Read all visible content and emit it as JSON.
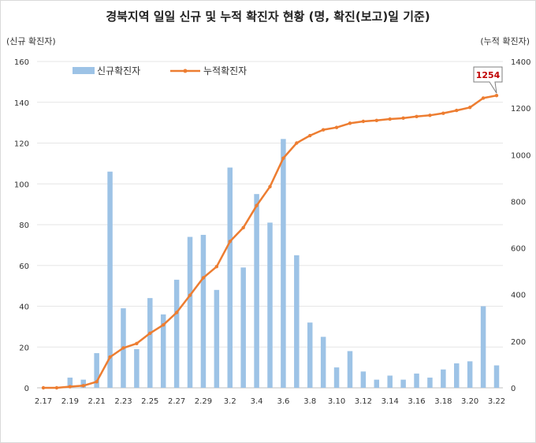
{
  "chart_data": {
    "type": "bar+line",
    "title": "경북지역 일일 신규 및 누적 확진자 현황 (명, 확진(보고)일 기준)",
    "ylabel_left": "(신규 확진자)",
    "ylabel_right": "(누적 확진자)",
    "ylim_left": [
      0,
      160
    ],
    "ylim_right": [
      0,
      1400
    ],
    "yticks_left": [
      0,
      20,
      40,
      60,
      80,
      100,
      120,
      140,
      160
    ],
    "yticks_right": [
      0,
      200,
      400,
      600,
      800,
      1000,
      1200,
      1400
    ],
    "x_tick_labels": [
      "2.17",
      "2.19",
      "2.21",
      "2.23",
      "2.25",
      "2.27",
      "2.29",
      "3.2",
      "3.4",
      "3.6",
      "3.8",
      "3.10",
      "3.12",
      "3.14",
      "3.16",
      "3.18",
      "3.20",
      "3.22"
    ],
    "categories": [
      "2.17",
      "2.18",
      "2.19",
      "2.20",
      "2.21",
      "2.22",
      "2.23",
      "2.24",
      "2.25",
      "2.26",
      "2.27",
      "2.28",
      "2.29",
      "3.1",
      "3.2",
      "3.3",
      "3.4",
      "3.5",
      "3.6",
      "3.7",
      "3.8",
      "3.9",
      "3.10",
      "3.11",
      "3.12",
      "3.13",
      "3.14",
      "3.15",
      "3.16",
      "3.17",
      "3.18",
      "3.19",
      "3.20",
      "3.21",
      "3.22"
    ],
    "series": [
      {
        "name": "신규확진자",
        "type": "bar",
        "axis": "left",
        "color": "#9dc3e6",
        "values": [
          0,
          0,
          5,
          4,
          17,
          106,
          39,
          19,
          44,
          36,
          53,
          74,
          75,
          48,
          108,
          59,
          95,
          81,
          122,
          65,
          32,
          25,
          10,
          18,
          8,
          4,
          6,
          4,
          7,
          5,
          9,
          12,
          13,
          40,
          11
        ]
      },
      {
        "name": "누적확진자",
        "type": "line",
        "axis": "right",
        "color": "#ed7d31",
        "values": [
          0,
          0,
          5,
          9,
          26,
          132,
          171,
          190,
          234,
          270,
          323,
          397,
          472,
          520,
          628,
          687,
          782,
          863,
          985,
          1050,
          1082,
          1107,
          1117,
          1135,
          1143,
          1147,
          1153,
          1157,
          1164,
          1169,
          1178,
          1190,
          1203,
          1243,
          1254
        ]
      }
    ],
    "callout": {
      "label": "1254"
    },
    "legend_position": "top-left",
    "grid": "horizontal"
  }
}
